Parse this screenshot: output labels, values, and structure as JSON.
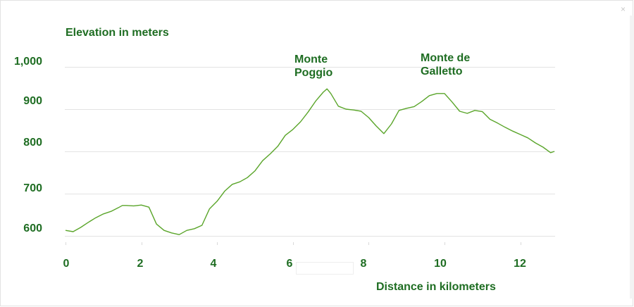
{
  "chart_data": {
    "type": "line",
    "title": "Elevation in meters",
    "xlabel": "Distance in kilometers",
    "ylabel": "Elevation in meters",
    "xlim": [
      0,
      12.9
    ],
    "ylim": [
      575,
      1025
    ],
    "y_ticks": [
      {
        "value": 600,
        "label": "600"
      },
      {
        "value": 700,
        "label": "700"
      },
      {
        "value": 800,
        "label": "800"
      },
      {
        "value": 900,
        "label": "900"
      },
      {
        "value": 1000,
        "label": "1,000"
      }
    ],
    "x_ticks": [
      {
        "value": 0,
        "label": "0"
      },
      {
        "value": 2,
        "label": "2"
      },
      {
        "value": 4,
        "label": "4"
      },
      {
        "value": 6,
        "label": "6"
      },
      {
        "value": 8,
        "label": "8"
      },
      {
        "value": 10,
        "label": "10"
      },
      {
        "value": 12,
        "label": "12"
      }
    ],
    "grid": true,
    "annotations": [
      {
        "label": "Monte\nPoggio"
      },
      {
        "label": "Monte de\nGalletto"
      }
    ],
    "series": [
      {
        "color": "#5aa52a",
        "x": [
          0,
          0.2,
          0.4,
          0.6,
          0.8,
          1.0,
          1.2,
          1.4,
          1.5,
          1.6,
          1.8,
          2.0,
          2.2,
          2.4,
          2.6,
          2.8,
          3.0,
          3.2,
          3.4,
          3.6,
          3.8,
          4.0,
          4.2,
          4.4,
          4.6,
          4.8,
          5.0,
          5.2,
          5.4,
          5.6,
          5.8,
          6.0,
          6.2,
          6.4,
          6.6,
          6.8,
          6.9,
          7.0,
          7.2,
          7.4,
          7.6,
          7.8,
          8.0,
          8.2,
          8.4,
          8.6,
          8.8,
          9.0,
          9.2,
          9.4,
          9.6,
          9.8,
          10.0,
          10.2,
          10.4,
          10.6,
          10.8,
          11.0,
          11.2,
          11.4,
          11.6,
          11.8,
          12.0,
          12.2,
          12.4,
          12.6,
          12.8,
          12.9
        ],
        "y": [
          613,
          610,
          620,
          632,
          643,
          652,
          658,
          667,
          672,
          672,
          671,
          673,
          668,
          628,
          613,
          607,
          603,
          613,
          617,
          625,
          664,
          682,
          706,
          722,
          728,
          738,
          754,
          778,
          794,
          812,
          838,
          852,
          870,
          893,
          919,
          940,
          948,
          937,
          907,
          900,
          898,
          895,
          880,
          860,
          842,
          865,
          897,
          902,
          906,
          918,
          932,
          937,
          937,
          917,
          895,
          890,
          897,
          894,
          876,
          867,
          857,
          848,
          840,
          832,
          820,
          810,
          797,
          800
        ]
      }
    ]
  }
}
